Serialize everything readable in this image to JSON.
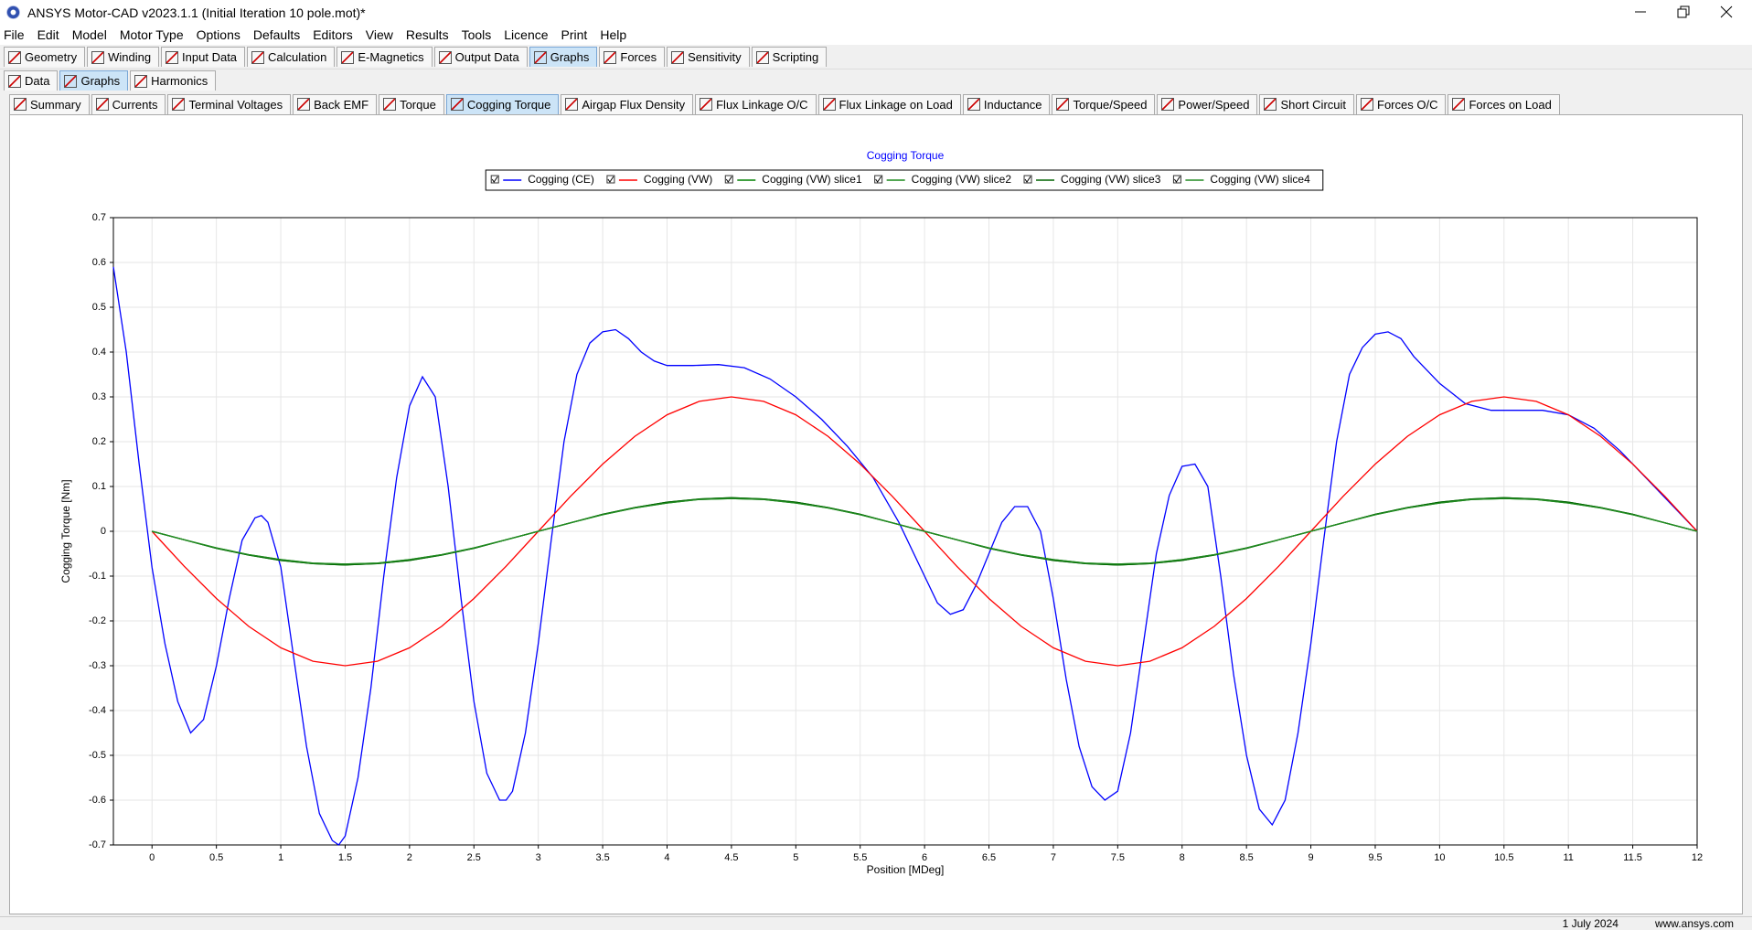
{
  "window": {
    "title": "ANSYS Motor-CAD v2023.1.1 (Initial Iteration 10 pole.mot)*"
  },
  "menu": [
    "File",
    "Edit",
    "Model",
    "Motor Type",
    "Options",
    "Defaults",
    "Editors",
    "View",
    "Results",
    "Tools",
    "Licence",
    "Print",
    "Help"
  ],
  "toolbar": {
    "items": [
      "Geometry",
      "Winding",
      "Input Data",
      "Calculation",
      "E-Magnetics",
      "Output Data",
      "Graphs",
      "Forces",
      "Sensitivity",
      "Scripting"
    ],
    "active": 6
  },
  "subtabs": {
    "items": [
      "Data",
      "Graphs",
      "Harmonics"
    ],
    "active": 1
  },
  "graph_tabs": {
    "items": [
      "Summary",
      "Currents",
      "Terminal Voltages",
      "Back EMF",
      "Torque",
      "Cogging Torque",
      "Airgap Flux Density",
      "Flux Linkage O/C",
      "Flux Linkage on Load",
      "Inductance",
      "Torque/Speed",
      "Power/Speed",
      "Short Circuit",
      "Forces O/C",
      "Forces on Load"
    ],
    "active": 5
  },
  "status": [
    "1 July 2024",
    "www.ansys.com"
  ],
  "chart_data": {
    "type": "line",
    "title": "Cogging Torque",
    "x_label": "Position [MDeg]",
    "y_label": "Cogging Torque [Nm]",
    "xlim": [
      -0.3,
      12
    ],
    "ylim": [
      -0.7,
      0.7
    ],
    "xticks": [
      0,
      0.5,
      1,
      1.5,
      2,
      2.5,
      3,
      3.5,
      4,
      4.5,
      5,
      5.5,
      6,
      6.5,
      7,
      7.5,
      8,
      8.5,
      9,
      9.5,
      10,
      10.5,
      11,
      11.5,
      12
    ],
    "yticks": [
      0.7,
      0.6,
      0.5,
      0.4,
      0.3,
      0.2,
      0.1,
      0,
      -0.1,
      -0.2,
      -0.3,
      -0.4,
      -0.5,
      -0.6,
      -0.7
    ],
    "grid": true,
    "legend": "top",
    "series": [
      {
        "name": "Cogging (CE)",
        "color": "#0000ff",
        "x": [
          -0.3,
          -0.2,
          -0.1,
          0,
          0.1,
          0.2,
          0.3,
          0.4,
          0.5,
          0.6,
          0.7,
          0.8,
          0.85,
          0.9,
          1.0,
          1.1,
          1.2,
          1.3,
          1.4,
          1.45,
          1.5,
          1.6,
          1.7,
          1.8,
          1.9,
          2.0,
          2.1,
          2.2,
          2.3,
          2.4,
          2.5,
          2.6,
          2.7,
          2.75,
          2.8,
          2.9,
          3.0,
          3.1,
          3.2,
          3.3,
          3.4,
          3.5,
          3.6,
          3.7,
          3.8,
          3.9,
          4.0,
          4.2,
          4.4,
          4.6,
          4.8,
          5.0,
          5.2,
          5.4,
          5.6,
          5.8,
          6.0,
          6.1,
          6.2,
          6.3,
          6.4,
          6.5,
          6.6,
          6.7,
          6.8,
          6.9,
          7.0,
          7.1,
          7.2,
          7.3,
          7.4,
          7.5,
          7.6,
          7.7,
          7.8,
          7.9,
          8.0,
          8.1,
          8.2,
          8.3,
          8.4,
          8.5,
          8.6,
          8.7,
          8.8,
          8.9,
          9.0,
          9.1,
          9.2,
          9.3,
          9.4,
          9.5,
          9.6,
          9.7,
          9.8,
          10.0,
          10.2,
          10.4,
          10.6,
          10.8,
          11.0,
          11.2,
          11.4,
          11.6,
          11.8,
          12
        ],
        "values": [
          0.59,
          0.4,
          0.15,
          -0.08,
          -0.25,
          -0.38,
          -0.45,
          -0.42,
          -0.3,
          -0.15,
          -0.02,
          0.03,
          0.035,
          0.02,
          -0.08,
          -0.28,
          -0.48,
          -0.63,
          -0.69,
          -0.7,
          -0.68,
          -0.55,
          -0.35,
          -0.1,
          0.12,
          0.28,
          0.345,
          0.3,
          0.1,
          -0.15,
          -0.38,
          -0.54,
          -0.6,
          -0.6,
          -0.58,
          -0.45,
          -0.25,
          -0.02,
          0.2,
          0.35,
          0.42,
          0.445,
          0.45,
          0.43,
          0.4,
          0.38,
          0.37,
          0.37,
          0.372,
          0.365,
          0.34,
          0.3,
          0.25,
          0.19,
          0.12,
          0.02,
          -0.1,
          -0.16,
          -0.185,
          -0.175,
          -0.12,
          -0.05,
          0.02,
          0.055,
          0.055,
          0.0,
          -0.15,
          -0.33,
          -0.48,
          -0.57,
          -0.6,
          -0.58,
          -0.45,
          -0.25,
          -0.05,
          0.08,
          0.145,
          0.15,
          0.1,
          -0.1,
          -0.32,
          -0.5,
          -0.62,
          -0.655,
          -0.6,
          -0.45,
          -0.25,
          -0.02,
          0.2,
          0.35,
          0.41,
          0.44,
          0.445,
          0.43,
          0.39,
          0.33,
          0.285,
          0.27,
          0.27,
          0.27,
          0.26,
          0.23,
          0.18,
          0.12,
          0.06,
          0.0
        ]
      },
      {
        "name": "Cogging (VW)",
        "color": "#ff0000",
        "x": [
          0,
          0.25,
          0.5,
          0.75,
          1,
          1.25,
          1.5,
          1.75,
          2,
          2.25,
          2.5,
          2.75,
          3,
          3.25,
          3.5,
          3.75,
          4,
          4.25,
          4.5,
          4.75,
          5,
          5.25,
          5.5,
          5.75,
          6,
          6.25,
          6.5,
          6.75,
          7,
          7.25,
          7.5,
          7.75,
          8,
          8.25,
          8.5,
          8.75,
          9,
          9.25,
          9.5,
          9.75,
          10,
          10.25,
          10.5,
          10.75,
          11,
          11.25,
          11.5,
          11.75,
          12
        ],
        "values": [
          0,
          -0.078,
          -0.15,
          -0.212,
          -0.26,
          -0.29,
          -0.3,
          -0.29,
          -0.26,
          -0.212,
          -0.15,
          -0.078,
          0,
          0.078,
          0.15,
          0.212,
          0.26,
          0.29,
          0.3,
          0.29,
          0.26,
          0.212,
          0.15,
          0.078,
          0,
          -0.078,
          -0.15,
          -0.212,
          -0.26,
          -0.29,
          -0.3,
          -0.29,
          -0.26,
          -0.212,
          -0.15,
          -0.078,
          0,
          0.078,
          0.15,
          0.212,
          0.26,
          0.29,
          0.3,
          0.29,
          0.26,
          0.212,
          0.15,
          0.078,
          0
        ]
      },
      {
        "name": "Cogging (VW) slice1",
        "color": "#008000",
        "x": [
          0,
          0.25,
          0.5,
          0.75,
          1,
          1.25,
          1.5,
          1.75,
          2,
          2.25,
          2.5,
          2.75,
          3,
          3.25,
          3.5,
          3.75,
          4,
          4.25,
          4.5,
          4.75,
          5,
          5.25,
          5.5,
          5.75,
          6,
          6.25,
          6.5,
          6.75,
          7,
          7.25,
          7.5,
          7.75,
          8,
          8.25,
          8.5,
          8.75,
          9,
          9.25,
          9.5,
          9.75,
          10,
          10.25,
          10.5,
          10.75,
          11,
          11.25,
          11.5,
          11.75,
          12
        ],
        "values": [
          0,
          -0.019,
          -0.038,
          -0.053,
          -0.065,
          -0.072,
          -0.075,
          -0.072,
          -0.065,
          -0.053,
          -0.038,
          -0.019,
          0,
          0.019,
          0.038,
          0.053,
          0.065,
          0.072,
          0.075,
          0.072,
          0.065,
          0.053,
          0.038,
          0.019,
          0,
          -0.019,
          -0.038,
          -0.053,
          -0.065,
          -0.072,
          -0.075,
          -0.072,
          -0.065,
          -0.053,
          -0.038,
          -0.019,
          0,
          0.019,
          0.038,
          0.053,
          0.065,
          0.072,
          0.075,
          0.072,
          0.065,
          0.053,
          0.038,
          0.019,
          0
        ]
      },
      {
        "name": "Cogging (VW) slice2",
        "color": "#1a8a1a",
        "x": [
          0,
          0.25,
          0.5,
          0.75,
          1,
          1.25,
          1.5,
          1.75,
          2,
          2.25,
          2.5,
          2.75,
          3,
          3.25,
          3.5,
          3.75,
          4,
          4.25,
          4.5,
          4.75,
          5,
          5.25,
          5.5,
          5.75,
          6,
          6.25,
          6.5,
          6.75,
          7,
          7.25,
          7.5,
          7.75,
          8,
          8.25,
          8.5,
          8.75,
          9,
          9.25,
          9.5,
          9.75,
          10,
          10.25,
          10.5,
          10.75,
          11,
          11.25,
          11.5,
          11.75,
          12
        ],
        "values": [
          0,
          -0.019,
          -0.037,
          -0.052,
          -0.063,
          -0.071,
          -0.073,
          -0.071,
          -0.063,
          -0.052,
          -0.037,
          -0.019,
          0,
          0.019,
          0.037,
          0.052,
          0.063,
          0.071,
          0.073,
          0.071,
          0.063,
          0.052,
          0.037,
          0.019,
          0,
          -0.019,
          -0.037,
          -0.052,
          -0.063,
          -0.071,
          -0.073,
          -0.071,
          -0.063,
          -0.052,
          -0.037,
          -0.019,
          0,
          0.019,
          0.037,
          0.052,
          0.063,
          0.071,
          0.073,
          0.071,
          0.063,
          0.052,
          0.037,
          0.019,
          0
        ]
      },
      {
        "name": "Cogging (VW) slice3",
        "color": "#006400",
        "x": [
          0,
          0.25,
          0.5,
          0.75,
          1,
          1.25,
          1.5,
          1.75,
          2,
          2.25,
          2.5,
          2.75,
          3,
          3.25,
          3.5,
          3.75,
          4,
          4.25,
          4.5,
          4.75,
          5,
          5.25,
          5.5,
          5.75,
          6,
          6.25,
          6.5,
          6.75,
          7,
          7.25,
          7.5,
          7.75,
          8,
          8.25,
          8.5,
          8.75,
          9,
          9.25,
          9.5,
          9.75,
          10,
          10.25,
          10.5,
          10.75,
          11,
          11.25,
          11.5,
          11.75,
          12
        ],
        "values": [
          0,
          -0.019,
          -0.038,
          -0.053,
          -0.065,
          -0.072,
          -0.075,
          -0.072,
          -0.065,
          -0.053,
          -0.038,
          -0.019,
          0,
          0.019,
          0.038,
          0.053,
          0.065,
          0.072,
          0.075,
          0.072,
          0.065,
          0.053,
          0.038,
          0.019,
          0,
          -0.019,
          -0.038,
          -0.053,
          -0.065,
          -0.072,
          -0.075,
          -0.072,
          -0.065,
          -0.053,
          -0.038,
          -0.019,
          0,
          0.019,
          0.038,
          0.053,
          0.065,
          0.072,
          0.075,
          0.072,
          0.065,
          0.053,
          0.038,
          0.019,
          0
        ]
      },
      {
        "name": "Cogging (VW) slice4",
        "color": "#228b22",
        "x": [
          0,
          0.25,
          0.5,
          0.75,
          1,
          1.25,
          1.5,
          1.75,
          2,
          2.25,
          2.5,
          2.75,
          3,
          3.25,
          3.5,
          3.75,
          4,
          4.25,
          4.5,
          4.75,
          5,
          5.25,
          5.5,
          5.75,
          6,
          6.25,
          6.5,
          6.75,
          7,
          7.25,
          7.5,
          7.75,
          8,
          8.25,
          8.5,
          8.75,
          9,
          9.25,
          9.5,
          9.75,
          10,
          10.25,
          10.5,
          10.75,
          11,
          11.25,
          11.5,
          11.75,
          12
        ],
        "values": [
          0,
          -0.019,
          -0.037,
          -0.052,
          -0.063,
          -0.071,
          -0.073,
          -0.071,
          -0.063,
          -0.052,
          -0.037,
          -0.019,
          0,
          0.019,
          0.037,
          0.052,
          0.063,
          0.071,
          0.073,
          0.071,
          0.063,
          0.052,
          0.037,
          0.019,
          0,
          -0.019,
          -0.037,
          -0.052,
          -0.063,
          -0.071,
          -0.073,
          -0.071,
          -0.063,
          -0.052,
          -0.037,
          -0.019,
          0,
          0.019,
          0.037,
          0.052,
          0.063,
          0.071,
          0.073,
          0.071,
          0.063,
          0.052,
          0.037,
          0.019,
          0
        ]
      }
    ]
  }
}
